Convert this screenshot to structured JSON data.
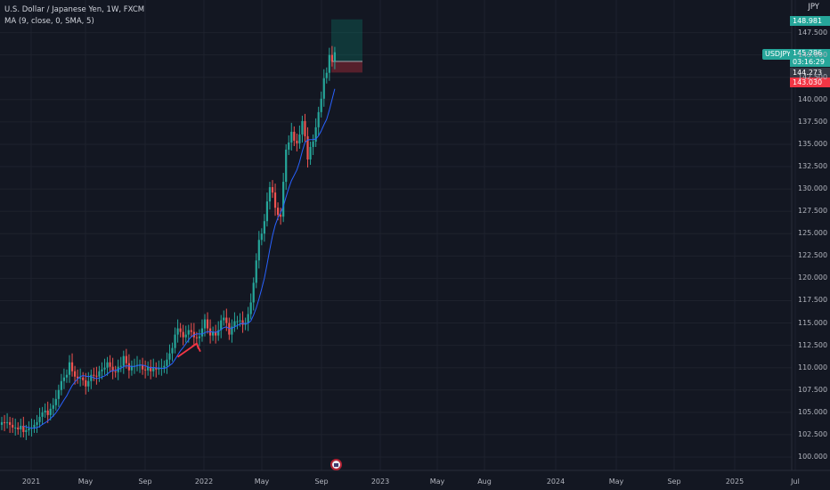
{
  "legend": {
    "title": "U.S. Dollar / Japanese Yen, 1W, FXCM",
    "indicator": "MA (9, close, 0, SMA, 5)"
  },
  "axis": {
    "y_unit": "JPY",
    "y_ticks": [
      "147.500",
      "145.000",
      "142.500",
      "140.000",
      "137.500",
      "135.000",
      "132.500",
      "130.000",
      "127.500",
      "125.000",
      "122.500",
      "120.000",
      "117.500",
      "115.000",
      "112.500",
      "110.000",
      "107.500",
      "105.000",
      "102.500",
      "100.000"
    ],
    "x_ticks": [
      "2021",
      "May",
      "Sep",
      "2022",
      "May",
      "Sep",
      "2023",
      "May",
      "Aug",
      "2024",
      "May",
      "Sep",
      "2025",
      "Jul"
    ]
  },
  "price_tags": {
    "symbol": "USDJPY",
    "target": "148.981",
    "current": "145.286",
    "countdown": "03:16:29",
    "entry": "144.273",
    "stop": "143.030"
  },
  "colors": {
    "background": "#131722",
    "up": "#26a69a",
    "down": "#ef5350",
    "ma": "#2962ff",
    "arrow": "#f23645"
  },
  "chart_data": {
    "type": "candlestick",
    "symbol": "USDJPY",
    "interval": "1W",
    "ylim": [
      99,
      149.5
    ],
    "y_scale": "linear",
    "closes": [
      103.9,
      103.8,
      103.9,
      103.6,
      103.3,
      103.3,
      103.1,
      103.5,
      102.8,
      103.0,
      103.2,
      103.3,
      103.6,
      103.9,
      104.5,
      105.0,
      105.2,
      104.7,
      105.4,
      105.8,
      106.5,
      107.5,
      108.5,
      108.9,
      109.2,
      110.6,
      109.6,
      109.0,
      108.8,
      108.9,
      108.6,
      107.9,
      108.5,
      109.2,
      109.1,
      109.0,
      109.6,
      109.8,
      110.0,
      110.6,
      110.1,
      109.6,
      109.5,
      110.1,
      110.2,
      111.3,
      110.5,
      109.7,
      110.2,
      110.2,
      110.3,
      110.3,
      109.8,
      109.7,
      110.1,
      109.6,
      110.0,
      109.8,
      110.0,
      110.0,
      110.2,
      110.9,
      111.6,
      112.2,
      113.7,
      114.4,
      114.0,
      113.4,
      113.7,
      114.2,
      114.0,
      113.4,
      113.3,
      113.5,
      114.4,
      115.4,
      114.4,
      113.6,
      114.0,
      113.6,
      114.2,
      115.3,
      115.6,
      115.0,
      113.7,
      114.6,
      115.2,
      115.2,
      115.3,
      114.8,
      115.0,
      116.0,
      117.3,
      119.5,
      122.0,
      124.3,
      125.0,
      126.4,
      128.6,
      130.2,
      129.6,
      127.9,
      127.1,
      126.9,
      130.8,
      134.4,
      135.2,
      136.4,
      135.4,
      135.1,
      136.1,
      137.6,
      135.9,
      133.3,
      134.7,
      135.3,
      136.9,
      138.6,
      140.1,
      142.4,
      143.0,
      145.0,
      144.3,
      145.3
    ],
    "annotations": {
      "long_position": {
        "target": 148.981,
        "entry": 144.273,
        "stop": 143.03
      },
      "trend_arrow": {
        "from_week": 63,
        "to_week": 73
      }
    }
  }
}
